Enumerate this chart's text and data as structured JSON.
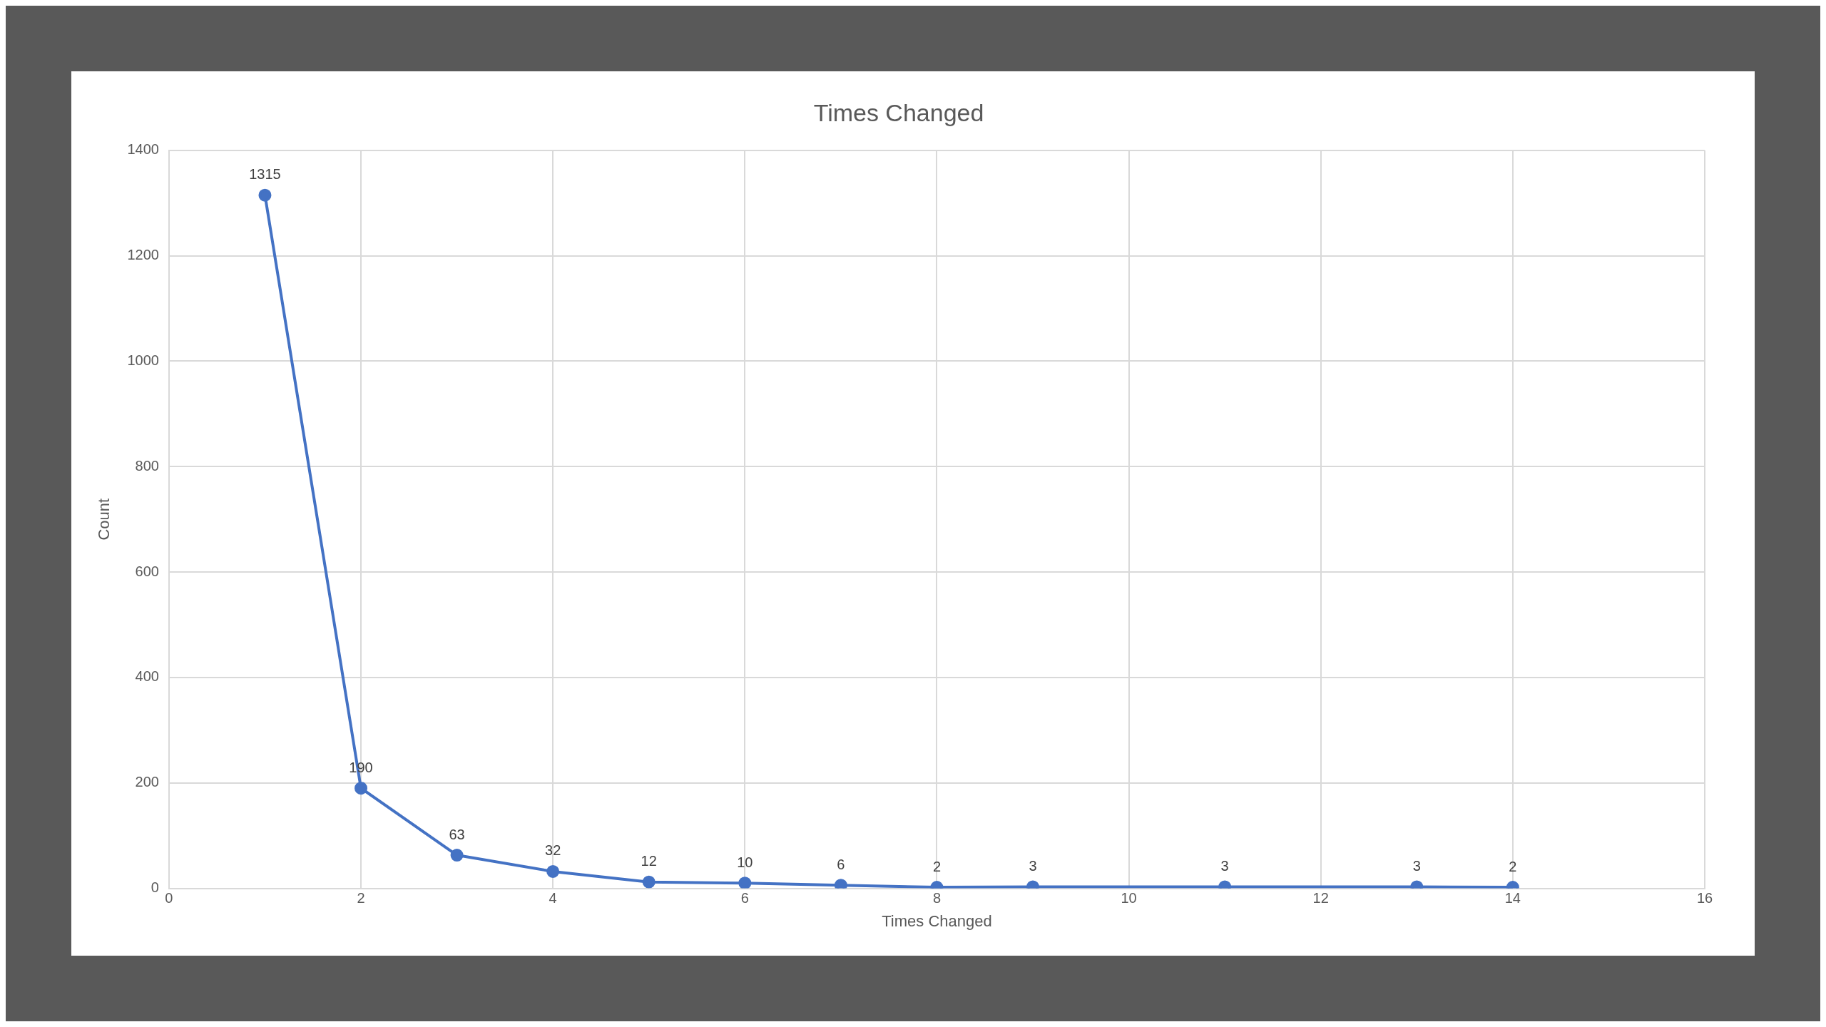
{
  "chart_data": {
    "type": "line",
    "title": "Times Changed",
    "xlabel": "Times Changed",
    "ylabel": "Count",
    "x": [
      1,
      2,
      3,
      4,
      5,
      6,
      7,
      8,
      9,
      11,
      13,
      14
    ],
    "series": [
      {
        "color": "#4472c4",
        "values": [
          1315,
          190,
          63,
          32,
          12,
          10,
          6,
          2,
          3,
          3,
          3,
          2
        ]
      }
    ],
    "xlim": [
      0,
      16
    ],
    "xticks": [
      0,
      2,
      4,
      6,
      8,
      10,
      12,
      14,
      16
    ],
    "ylim": [
      0,
      1400
    ],
    "yticks": [
      0,
      200,
      400,
      600,
      800,
      1000,
      1200,
      1400
    ],
    "grid": true,
    "marker": "circle",
    "data_labels": true,
    "legend": false
  }
}
